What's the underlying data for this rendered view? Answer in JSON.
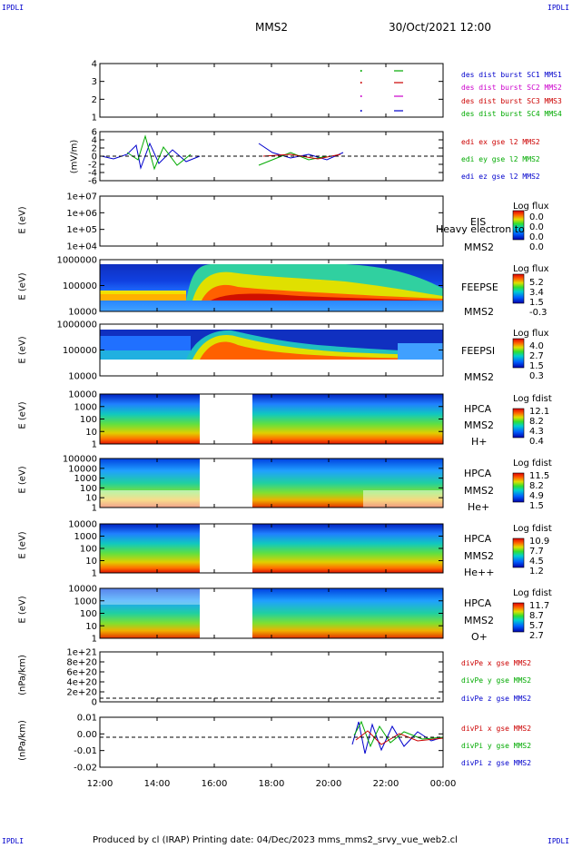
{
  "corners": {
    "tl": "IPDLI",
    "tr": "IPDLI",
    "bl": "IPDLI",
    "br": "IPDLI"
  },
  "header": {
    "spacecraft": "MMS2",
    "datetime": "30/Oct/2021 12:00"
  },
  "footer": "Produced by cl (IRAP)   Printing date: 04/Dec/2023   mms_mms2_srvy_vue_web2.cl",
  "x_axis": {
    "ticks": [
      "12:00",
      "14:00",
      "16:00",
      "18:00",
      "20:00",
      "22:00",
      "00:00"
    ]
  },
  "panels": [
    {
      "id": "burst",
      "ylabel": "",
      "yticks": [
        "4",
        "3",
        "2",
        "1"
      ],
      "legend": [
        {
          "text": "des dist burst SC1 MMS1",
          "color": "#0000cc"
        },
        {
          "text": "des dist burst SC2 MMS2",
          "color": "#cc00cc"
        },
        {
          "text": "des dist burst SC3 MMS3",
          "color": "#cc0000"
        },
        {
          "text": "des dist burst SC4 MMS4",
          "color": "#00aa00"
        }
      ]
    },
    {
      "id": "edi",
      "ylabel": "(mV/m)",
      "yticks": [
        "6",
        "4",
        "2",
        "0",
        "-2",
        "-4",
        "-6"
      ],
      "legend": [
        {
          "text": "edi ex gse l2 MMS2",
          "color": "#cc0000"
        },
        {
          "text": "edi ey gse l2 MMS2",
          "color": "#00aa00"
        },
        {
          "text": "edi ez gse l2 MMS2",
          "color": "#0000cc"
        }
      ]
    },
    {
      "id": "eis",
      "ylabel": "E (eV)",
      "yticks": [
        "1e+07",
        "1e+06",
        "1e+05",
        "1e+04"
      ],
      "side": [
        "EIS",
        "MMS2"
      ],
      "overlay": "Heavy electron to",
      "cbar": {
        "title": "Log flux",
        "values": [
          "0.0",
          "0.0",
          "0.0",
          "0.0"
        ]
      }
    },
    {
      "id": "feepse",
      "ylabel": "E (eV)",
      "yticks": [
        "1000000",
        "100000",
        "10000"
      ],
      "side": [
        "FEEPSE",
        "MMS2"
      ],
      "cbar": {
        "title": "Log flux",
        "values": [
          "5.2",
          "3.4",
          "1.5",
          "-0.3"
        ]
      }
    },
    {
      "id": "feepsi",
      "ylabel": "E (eV)",
      "yticks": [
        "1000000",
        "100000",
        "10000"
      ],
      "side": [
        "FEEPSI",
        "MMS2"
      ],
      "cbar": {
        "title": "Log flux",
        "values": [
          "4.0",
          "2.7",
          "1.5",
          "0.3"
        ]
      }
    },
    {
      "id": "hpca_h",
      "ylabel": "E (eV)",
      "yticks": [
        "10000",
        "1000",
        "100",
        "10",
        "1"
      ],
      "side": [
        "HPCA",
        "MMS2",
        "H+"
      ],
      "cbar": {
        "title": "Log fdist",
        "values": [
          "12.1",
          "8.2",
          "4.3",
          "0.4"
        ]
      }
    },
    {
      "id": "hpca_he",
      "ylabel": "E (eV)",
      "yticks": [
        "100000",
        "10000",
        "1000",
        "100",
        "10",
        "1"
      ],
      "side": [
        "HPCA",
        "MMS2",
        "He+"
      ],
      "cbar": {
        "title": "Log fdist",
        "values": [
          "11.5",
          "8.2",
          "4.9",
          "1.5"
        ]
      }
    },
    {
      "id": "hpca_hepp",
      "ylabel": "E (eV)",
      "yticks": [
        "10000",
        "1000",
        "100",
        "10",
        "1"
      ],
      "side": [
        "HPCA",
        "MMS2",
        "He++"
      ],
      "cbar": {
        "title": "Log fdist",
        "values": [
          "10.9",
          "7.7",
          "4.5",
          "1.2"
        ]
      }
    },
    {
      "id": "hpca_o",
      "ylabel": "E (eV)",
      "yticks": [
        "10000",
        "1000",
        "100",
        "10",
        "1"
      ],
      "side": [
        "HPCA",
        "MMS2",
        "O+"
      ],
      "cbar": {
        "title": "Log fdist",
        "values": [
          "11.7",
          "8.7",
          "5.7",
          "2.7"
        ]
      }
    },
    {
      "id": "divpe",
      "ylabel": "(nPa/km)",
      "yticks": [
        "1e+21",
        "8e+20",
        "6e+20",
        "4e+20",
        "2e+20",
        "0"
      ],
      "legend": [
        {
          "text": "divPe x gse MMS2",
          "color": "#cc0000"
        },
        {
          "text": "divPe y gse MMS2",
          "color": "#00aa00"
        },
        {
          "text": "divPe z gse MMS2",
          "color": "#0000cc"
        }
      ]
    },
    {
      "id": "divpi",
      "ylabel": "(nPa/km)",
      "yticks": [
        "0.01",
        "0.00",
        "-0.01",
        "-0.02"
      ],
      "legend": [
        {
          "text": "divPi x gse MMS2",
          "color": "#cc0000"
        },
        {
          "text": "divPi y gse MMS2",
          "color": "#00aa00"
        },
        {
          "text": "divPi z gse MMS2",
          "color": "#0000cc"
        }
      ]
    }
  ],
  "chart_data": [
    {
      "type": "scatter",
      "panel": "burst",
      "x_range": [
        "12:00",
        "00:00"
      ],
      "ylim": [
        1,
        4
      ],
      "series": [
        {
          "name": "des dist burst SC1 MMS1",
          "y": 1
        },
        {
          "name": "des dist burst SC2 MMS2",
          "y": 2
        },
        {
          "name": "des dist burst SC3 MMS3",
          "y": 3
        },
        {
          "name": "des dist burst SC4 MMS4",
          "y": 4
        }
      ]
    },
    {
      "type": "line",
      "panel": "edi",
      "ylim": [
        -6,
        6
      ],
      "series": [
        {
          "name": "edi ex gse l2 MMS2"
        },
        {
          "name": "edi ey gse l2 MMS2"
        },
        {
          "name": "edi ez gse l2 MMS2"
        }
      ]
    },
    {
      "type": "heatmap",
      "panel": "eis",
      "yscale": "log",
      "ylim": [
        "1e+04",
        "1e+07"
      ],
      "colorbar": "Log flux"
    },
    {
      "type": "heatmap",
      "panel": "feepse",
      "yscale": "log",
      "ylim": [
        10000,
        1000000
      ],
      "colorbar": "Log flux"
    },
    {
      "type": "heatmap",
      "panel": "feepsi",
      "yscale": "log",
      "ylim": [
        10000,
        1000000
      ],
      "colorbar": "Log flux"
    },
    {
      "type": "heatmap",
      "panel": "hpca_h",
      "yscale": "log",
      "ylim": [
        1,
        10000
      ],
      "colorbar": "Log fdist"
    },
    {
      "type": "heatmap",
      "panel": "hpca_he",
      "yscale": "log",
      "ylim": [
        1,
        100000
      ],
      "colorbar": "Log fdist"
    },
    {
      "type": "heatmap",
      "panel": "hpca_hepp",
      "yscale": "log",
      "ylim": [
        1,
        10000
      ],
      "colorbar": "Log fdist"
    },
    {
      "type": "heatmap",
      "panel": "hpca_o",
      "yscale": "log",
      "ylim": [
        1,
        10000
      ],
      "colorbar": "Log fdist"
    },
    {
      "type": "line",
      "panel": "divpe",
      "ylim": [
        0,
        "1e+21"
      ],
      "series": [
        {
          "name": "divPe x gse MMS2"
        },
        {
          "name": "divPe y gse MMS2"
        },
        {
          "name": "divPe z gse MMS2"
        }
      ]
    },
    {
      "type": "line",
      "panel": "divpi",
      "ylim": [
        -0.02,
        0.01
      ],
      "series": [
        {
          "name": "divPi x gse MMS2"
        },
        {
          "name": "divPi y gse MMS2"
        },
        {
          "name": "divPi z gse MMS2"
        }
      ]
    }
  ]
}
